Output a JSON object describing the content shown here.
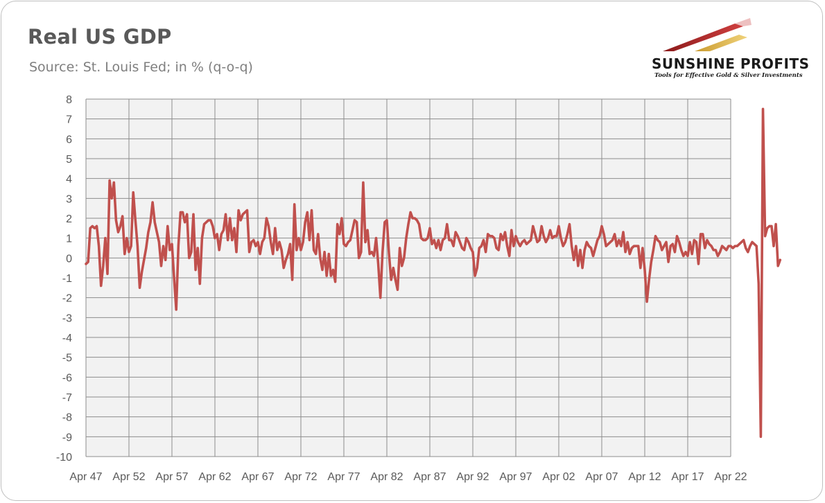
{
  "title": "Real US GDP",
  "subtitle": "Source: St. Louis Fed; in % (q-o-q)",
  "logo": {
    "name": "SUNSHINE PROFITS",
    "tagline": "Tools for Effective Gold & Silver Investments"
  },
  "colors": {
    "line": "#c0504d",
    "plot_bg": "#f2f2f2",
    "grid": "#8c8c8c",
    "text": "#595959"
  },
  "chart_data": {
    "type": "line",
    "title": "Real US GDP",
    "subtitle": "Source: St. Louis Fed; in % (q-o-q)",
    "xlabel": "",
    "ylabel": "",
    "ylim": [
      -10,
      8
    ],
    "yticks": [
      "8",
      "7",
      "6",
      "5",
      "4",
      "3",
      "2",
      "1",
      "0",
      "-1",
      "-2",
      "-3",
      "-4",
      "-5",
      "-6",
      "-7",
      "-8",
      "-9",
      "-10"
    ],
    "xticks": [
      "Apr 47",
      "Apr 52",
      "Apr 57",
      "Apr 62",
      "Apr 67",
      "Apr 72",
      "Apr 77",
      "Apr 82",
      "Apr 87",
      "Apr 92",
      "Apr 97",
      "Apr 02",
      "Apr 07",
      "Apr 12",
      "Apr 17",
      "Apr 22"
    ],
    "grid": true,
    "legend": "none",
    "series": [
      {
        "x_start": "Apr 47",
        "frequency": "quarterly",
        "values": [
          -0.3,
          -0.2,
          1.5,
          1.6,
          1.5,
          1.6,
          0.6,
          -1.4,
          -0.4,
          1.0,
          -0.8,
          3.9,
          3.0,
          3.8,
          1.9,
          1.3,
          1.6,
          2.1,
          0.2,
          1.0,
          0.3,
          0.6,
          3.3,
          1.9,
          0.6,
          -1.5,
          -0.7,
          -0.1,
          0.5,
          1.3,
          1.8,
          2.8,
          1.8,
          1.3,
          0.8,
          -0.4,
          0.6,
          -0.1,
          1.6,
          0.4,
          0.7,
          -1.0,
          -2.6,
          0.6,
          2.3,
          2.3,
          1.8,
          2.2,
          0.0,
          0.3,
          2.2,
          -0.6,
          0.5,
          -1.3,
          1.0,
          1.7,
          1.8,
          1.9,
          1.9,
          1.6,
          1.0,
          1.2,
          0.4,
          1.2,
          1.4,
          2.2,
          0.9,
          2.0,
          0.9,
          1.5,
          0.3,
          2.4,
          1.9,
          2.2,
          2.3,
          2.4,
          0.3,
          0.8,
          0.9,
          0.6,
          0.8,
          0.2,
          0.8,
          1.0,
          2.0,
          1.6,
          0.8,
          0.2,
          1.5,
          0.4,
          0.8,
          0.4,
          -0.5,
          -0.1,
          0.2,
          0.7,
          -1.1,
          2.7,
          0.4,
          1.0,
          0.4,
          0.8,
          1.8,
          2.3,
          0.9,
          2.4,
          0.4,
          0.2,
          1.2,
          0.0,
          -0.6,
          0.3,
          -0.9,
          0.2,
          -0.9,
          -0.6,
          -1.2,
          1.7,
          1.2,
          2.0,
          0.7,
          0.6,
          0.8,
          0.9,
          1.4,
          1.9,
          1.8,
          0.0,
          0.3,
          3.8,
          0.8,
          1.4,
          0.2,
          0.3,
          0.1,
          1.0,
          -0.3,
          -2.0,
          0.3,
          1.8,
          1.9,
          0.2,
          -1.1,
          -0.5,
          -1.1,
          -1.6,
          0.5,
          -0.4,
          0.0,
          1.0,
          1.7,
          2.3,
          2.0,
          2.0,
          1.9,
          1.7,
          1.0,
          0.9,
          0.9,
          1.0,
          1.5,
          0.7,
          0.9,
          0.5,
          0.9,
          0.4,
          0.9,
          1.0,
          1.7,
          0.9,
          0.9,
          0.6,
          1.3,
          1.1,
          0.8,
          0.5,
          0.4,
          1.0,
          0.8,
          0.5,
          0.3,
          -0.9,
          -0.5,
          0.5,
          0.6,
          0.9,
          0.3,
          1.2,
          1.1,
          1.1,
          1.0,
          0.5,
          0.4,
          1.2,
          0.9,
          1.3,
          0.6,
          0.1,
          1.4,
          0.6,
          1.1,
          0.8,
          0.6,
          0.8,
          0.9,
          0.7,
          0.8,
          0.9,
          1.6,
          1.2,
          0.8,
          0.9,
          1.6,
          1.1,
          0.8,
          1.0,
          1.4,
          1.0,
          1.1,
          1.1,
          1.6,
          1.0,
          0.6,
          0.8,
          1.2,
          1.7,
          0.6,
          -0.1,
          0.6,
          -0.4,
          0.4,
          -0.5,
          0.4,
          0.8,
          0.6,
          0.5,
          0.1,
          0.5,
          0.9,
          1.1,
          1.6,
          1.2,
          0.6,
          0.7,
          0.8,
          0.9,
          1.2,
          0.6,
          0.9,
          0.6,
          1.3,
          0.3,
          0.8,
          0.2,
          0.5,
          0.6,
          0.6,
          0.6,
          -0.5,
          0.5,
          -0.6,
          -2.2,
          -1.1,
          -0.2,
          0.4,
          1.1,
          0.9,
          0.8,
          0.4,
          0.6,
          0.8,
          -0.2,
          0.6,
          0.7,
          0.3,
          1.1,
          0.8,
          0.4,
          0.1,
          0.3,
          0.1,
          0.8,
          0.2,
          0.9,
          0.8,
          -0.3,
          1.2,
          1.2,
          0.5,
          0.9,
          0.7,
          0.6,
          0.4,
          0.4,
          0.1,
          0.3,
          0.6,
          0.5,
          0.4,
          0.6,
          0.6,
          0.5,
          0.6,
          0.6,
          0.7,
          0.8,
          0.9,
          0.5,
          0.3,
          0.6,
          0.8,
          0.7,
          0.6,
          -1.3,
          -9.0,
          7.5,
          1.1,
          1.5,
          1.6,
          1.6,
          0.6,
          1.7,
          -0.4,
          -0.1
        ]
      }
    ]
  }
}
